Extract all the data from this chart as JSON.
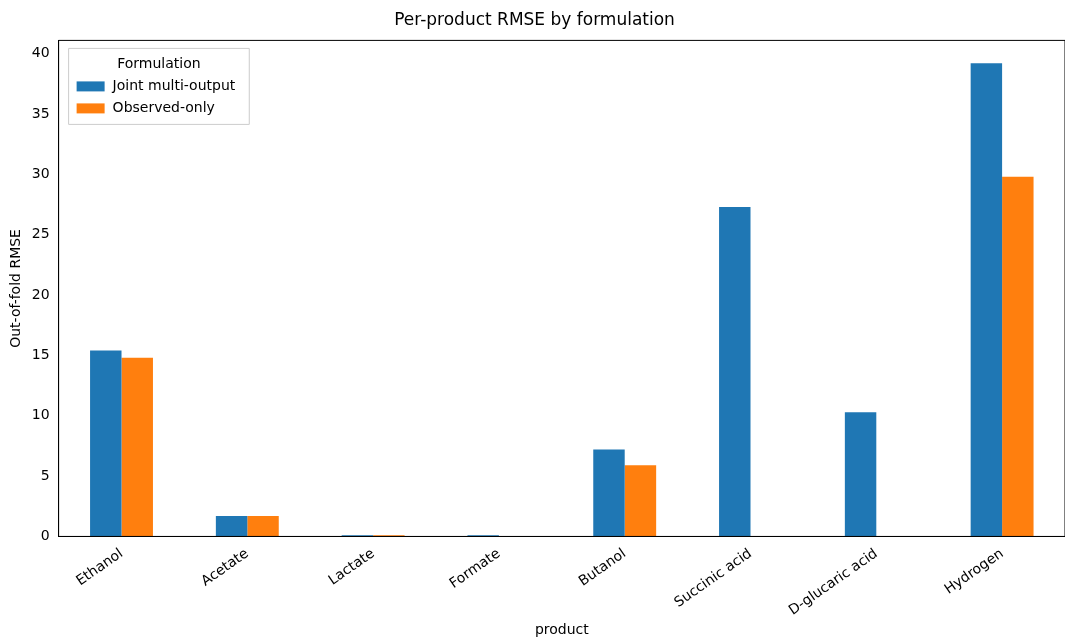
{
  "chart_data": {
    "type": "bar",
    "title": "Per-product RMSE by formulation",
    "xlabel": "product",
    "ylabel": "Out-of-fold RMSE",
    "legend_title": "Formulation",
    "categories": [
      "Ethanol",
      "Acetate",
      "Lactate",
      "Formate",
      "Butanol",
      "Succinic acid",
      "D-glucaric acid",
      "Hydrogen"
    ],
    "series": [
      {
        "name": "Joint multi-output",
        "color": "#1f77b4",
        "values": [
          15.4,
          1.7,
          0.1,
          0.1,
          7.2,
          27.3,
          10.3,
          39.2
        ]
      },
      {
        "name": "Observed-only",
        "color": "#ff7f0e",
        "values": [
          14.8,
          1.7,
          0.1,
          null,
          5.9,
          null,
          null,
          29.8
        ]
      }
    ],
    "ylim": [
      0,
      41.1
    ],
    "yticks": [
      0,
      5,
      10,
      15,
      20,
      25,
      30,
      35,
      40
    ],
    "grid": false,
    "legend": "top left"
  }
}
